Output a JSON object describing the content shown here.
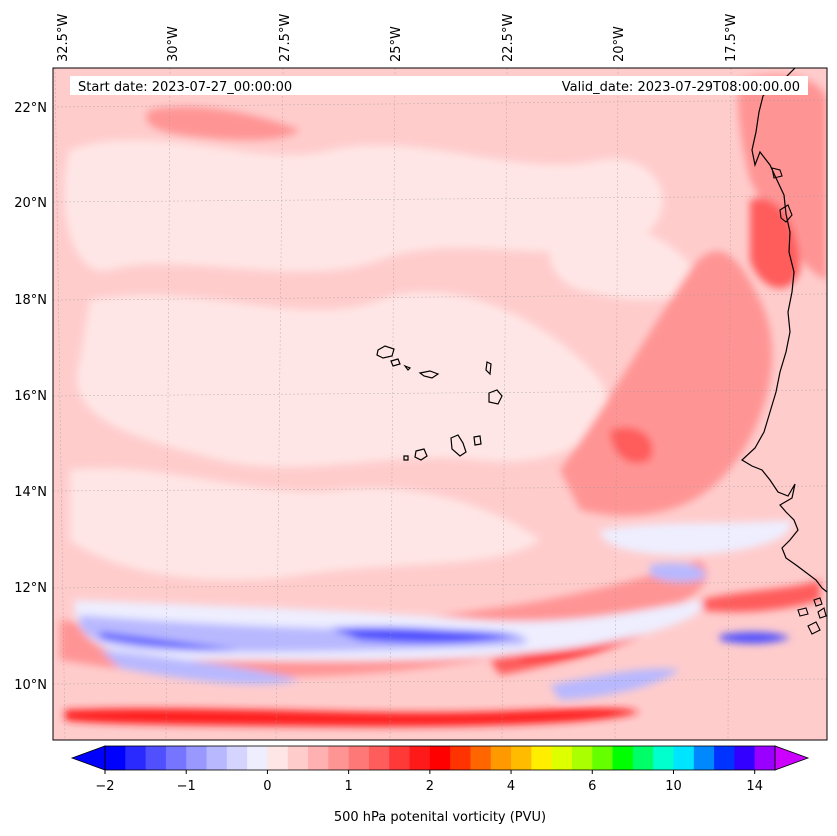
{
  "header": {
    "start_date": "Start date: 2023-07-27_00:00:00",
    "valid_date": "Valid_date: 2023-07-29T08:00:00.00"
  },
  "lon_labels": [
    "32.5°W",
    "30°W",
    "27.5°W",
    "25°W",
    "22.5°W",
    "20°W",
    "17.5°W"
  ],
  "lat_labels": [
    "22°N",
    "20°N",
    "18°N",
    "16°N",
    "14°N",
    "12°N",
    "10°N"
  ],
  "colorbar": {
    "label": "500 hPa potenital vorticity (PVU)",
    "tick_labels": [
      "−2",
      "−1",
      "0",
      "1",
      "2",
      "4",
      "6",
      "10",
      "14"
    ],
    "colors": [
      "#0000ff",
      "#2a2aff",
      "#5050ff",
      "#7575ff",
      "#9898ff",
      "#b8b8ff",
      "#d4d4ff",
      "#eeeeff",
      "#ffe6e6",
      "#ffcccc",
      "#ffb0b0",
      "#ff9494",
      "#ff7878",
      "#ff5c5c",
      "#ff3838",
      "#ff1a1a",
      "#ff0000",
      "#ff3300",
      "#ff6600",
      "#ff9900",
      "#ffbb00",
      "#ffee00",
      "#ddff00",
      "#aaff00",
      "#66ff00",
      "#00ff00",
      "#00ff66",
      "#00ffcc",
      "#00e5ff",
      "#0088ff",
      "#0033ff",
      "#3300ff",
      "#9900ff"
    ],
    "under_color": "#0000ff",
    "over_color": "#cc00ff"
  },
  "field_colors": {
    "background": "#ffcccc",
    "light": "#ffe6e6",
    "medium": "#ff9494",
    "strong": "#ff5c5c",
    "intense": "#ff1a1a",
    "neg_light": "#eeeeff",
    "neg_medium": "#b8b8ff",
    "neg_strong": "#5050ff",
    "coastline": "#000000"
  }
}
